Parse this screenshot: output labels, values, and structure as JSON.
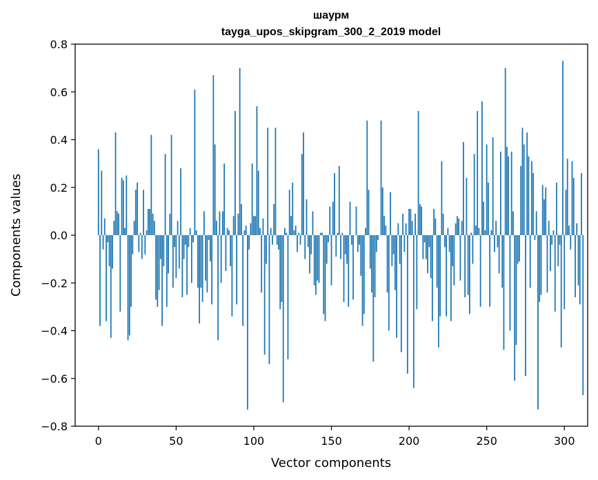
{
  "chart_data": {
    "type": "bar",
    "title": "шаурм",
    "subtitle": "tayga_upos_skipgram_300_2_2019 model",
    "xlabel": "Vector components",
    "ylabel": "Components values",
    "xlim": [
      -15,
      315
    ],
    "ylim": [
      -0.8,
      0.8
    ],
    "xticks": [
      0,
      50,
      100,
      150,
      200,
      250,
      300
    ],
    "xtick_labels": [
      "0",
      "50",
      "100",
      "150",
      "200",
      "250",
      "300"
    ],
    "yticks": [
      -0.8,
      -0.6,
      -0.4,
      -0.2,
      0.0,
      0.2,
      0.4,
      0.6,
      0.8
    ],
    "ytick_labels": [
      "−0.8",
      "−0.6",
      "−0.4",
      "−0.2",
      "0.0",
      "0.2",
      "0.4",
      "0.6",
      "0.8"
    ],
    "bar_color": "#1f77b4",
    "grid": false,
    "values": [
      0.36,
      -0.38,
      0.27,
      -0.06,
      0.07,
      -0.36,
      -0.03,
      -0.13,
      -0.43,
      -0.14,
      0.06,
      0.43,
      0.1,
      0.09,
      -0.32,
      0.24,
      0.23,
      0.03,
      0.25,
      -0.44,
      -0.42,
      -0.3,
      -0.08,
      0.06,
      0.19,
      0.22,
      -0.07,
      0.01,
      -0.1,
      0.19,
      -0.08,
      0.02,
      0.11,
      0.11,
      0.42,
      0.09,
      0.06,
      -0.27,
      -0.3,
      -0.23,
      -0.1,
      -0.38,
      -0.13,
      0.34,
      -0.3,
      -0.16,
      0.09,
      0.42,
      -0.22,
      -0.05,
      -0.18,
      0.06,
      -0.14,
      0.28,
      -0.26,
      -0.1,
      -0.04,
      -0.25,
      -0.05,
      0.03,
      -0.2,
      -0.03,
      0.61,
      0.02,
      -0.22,
      -0.37,
      -0.22,
      -0.28,
      0.1,
      -0.19,
      -0.24,
      -0.02,
      -0.11,
      -0.29,
      0.67,
      0.38,
      0.06,
      -0.44,
      0.1,
      -0.2,
      0.1,
      0.3,
      -0.15,
      0.03,
      0.02,
      -0.13,
      -0.34,
      0.08,
      0.52,
      -0.29,
      0.09,
      0.7,
      0.13,
      -0.38,
      0.02,
      0.04,
      -0.73,
      -0.06,
      0.05,
      0.3,
      0.08,
      0.08,
      0.54,
      0.27,
      0.03,
      -0.24,
      0.07,
      -0.5,
      -0.12,
      0.45,
      -0.54,
      0.03,
      -0.04,
      0.13,
      0.45,
      -0.04,
      -0.06,
      -0.31,
      -0.28,
      -0.7,
      0.03,
      0.01,
      -0.52,
      0.19,
      0.08,
      0.22,
      0.02,
      0.04,
      -0.07,
      0.01,
      -0.04,
      0.34,
      0.43,
      -0.1,
      0.15,
      -0.05,
      -0.16,
      -0.08,
      0.1,
      -0.21,
      -0.25,
      -0.19,
      -0.2,
      0.01,
      0.01,
      -0.33,
      -0.36,
      -0.12,
      -0.03,
      0.12,
      -0.21,
      0.14,
      0.26,
      -0.09,
      0.01,
      0.29,
      -0.1,
      0.01,
      -0.28,
      -0.08,
      -0.12,
      -0.3,
      0.14,
      -0.04,
      -0.27,
      0.0,
      0.12,
      -0.07,
      -0.04,
      -0.17,
      -0.38,
      -0.33,
      0.03,
      0.48,
      0.19,
      -0.14,
      -0.24,
      -0.53,
      -0.26,
      -0.07,
      -0.02,
      0.0,
      0.48,
      0.2,
      0.08,
      0.04,
      -0.24,
      -0.4,
      0.18,
      -0.13,
      -0.08,
      -0.23,
      -0.43,
      0.05,
      -0.12,
      -0.49,
      0.09,
      -0.07,
      0.05,
      -0.58,
      0.11,
      0.11,
      0.06,
      -0.64,
      0.09,
      -0.31,
      0.52,
      0.13,
      0.12,
      -0.1,
      -0.03,
      -0.1,
      -0.16,
      -0.05,
      -0.18,
      -0.36,
      0.11,
      0.07,
      -0.22,
      -0.47,
      -0.34,
      0.31,
      0.09,
      -0.05,
      -0.34,
      0.03,
      -0.07,
      -0.36,
      -0.13,
      -0.21,
      0.05,
      0.08,
      0.07,
      -0.19,
      0.06,
      0.39,
      -0.26,
      0.24,
      -0.25,
      -0.33,
      0.01,
      -0.12,
      0.34,
      0.04,
      0.52,
      0.03,
      -0.3,
      0.56,
      0.14,
      0.02,
      0.38,
      0.22,
      -0.3,
      0.02,
      0.41,
      -0.07,
      0.06,
      -0.05,
      -0.16,
      0.35,
      -0.22,
      -0.48,
      0.7,
      0.37,
      0.33,
      -0.4,
      0.35,
      0.1,
      -0.61,
      -0.46,
      -0.12,
      -0.11,
      0.29,
      0.45,
      0.38,
      -0.59,
      0.43,
      0.33,
      -0.22,
      0.31,
      0.26,
      -0.02,
      0.1,
      -0.73,
      -0.28,
      -0.25,
      0.21,
      0.15,
      0.2,
      -0.24,
      0.06,
      -0.15,
      -0.04,
      0.02,
      -0.32,
      0.22,
      -0.13,
      -0.04,
      -0.47,
      0.73,
      -0.31,
      0.19,
      0.32,
      0.04,
      -0.06,
      0.31,
      0.24,
      -0.26,
      0.05,
      -0.21,
      -0.29,
      0.26,
      -0.67
    ]
  }
}
